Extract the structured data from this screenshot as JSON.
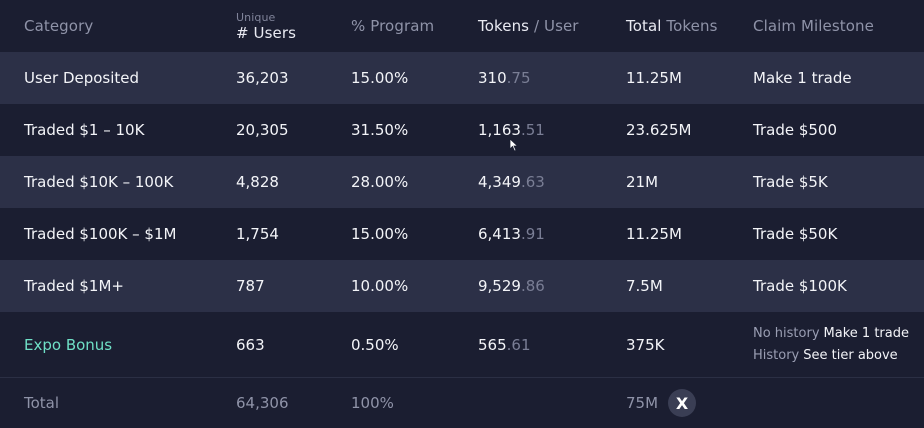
{
  "header": {
    "category": "Category",
    "users_top": "Unique",
    "users_main": "# Users",
    "program": "% Program",
    "tokens_a": "Tokens",
    "tokens_b": " / User",
    "total_a": "Total",
    "total_b": " Tokens",
    "milestone": "Claim Milestone"
  },
  "rows": [
    {
      "category": "User Deposited",
      "users": "36,203",
      "program": "15.00%",
      "tokens_int": "310",
      "tokens_dec": ".75",
      "total": "11.25M",
      "milestone": "Make 1 trade"
    },
    {
      "category": "Traded $1 – 10K",
      "users": "20,305",
      "program": "31.50%",
      "tokens_int": "1,163",
      "tokens_dec": ".51",
      "total": "23.625M",
      "milestone": "Trade $500"
    },
    {
      "category": "Traded $10K – 100K",
      "users": "4,828",
      "program": "28.00%",
      "tokens_int": "4,349",
      "tokens_dec": ".63",
      "total": "21M",
      "milestone": "Trade $5K"
    },
    {
      "category": "Traded $100K – $1M",
      "users": "1,754",
      "program": "15.00%",
      "tokens_int": "6,413",
      "tokens_dec": ".91",
      "total": "11.25M",
      "milestone": "Trade $50K"
    },
    {
      "category": "Traded $1M+",
      "users": "787",
      "program": "10.00%",
      "tokens_int": "9,529",
      "tokens_dec": ".86",
      "total": "7.5M",
      "milestone": "Trade $100K"
    }
  ],
  "expo": {
    "category": "Expo Bonus",
    "users": "663",
    "program": "0.50%",
    "tokens_int": "565",
    "tokens_dec": ".61",
    "total": "375K",
    "no_history_label": "No history",
    "no_history_value": "Make 1 trade",
    "history_label": "History",
    "history_value": "See tier above"
  },
  "total": {
    "label": "Total",
    "users": "64,306",
    "program": "100%",
    "tokens": "75M",
    "close_glyph": "X"
  },
  "colors": {
    "background": "#1b1e31",
    "row_alt": "#2c3047",
    "accent_green": "#6fe0c6"
  }
}
